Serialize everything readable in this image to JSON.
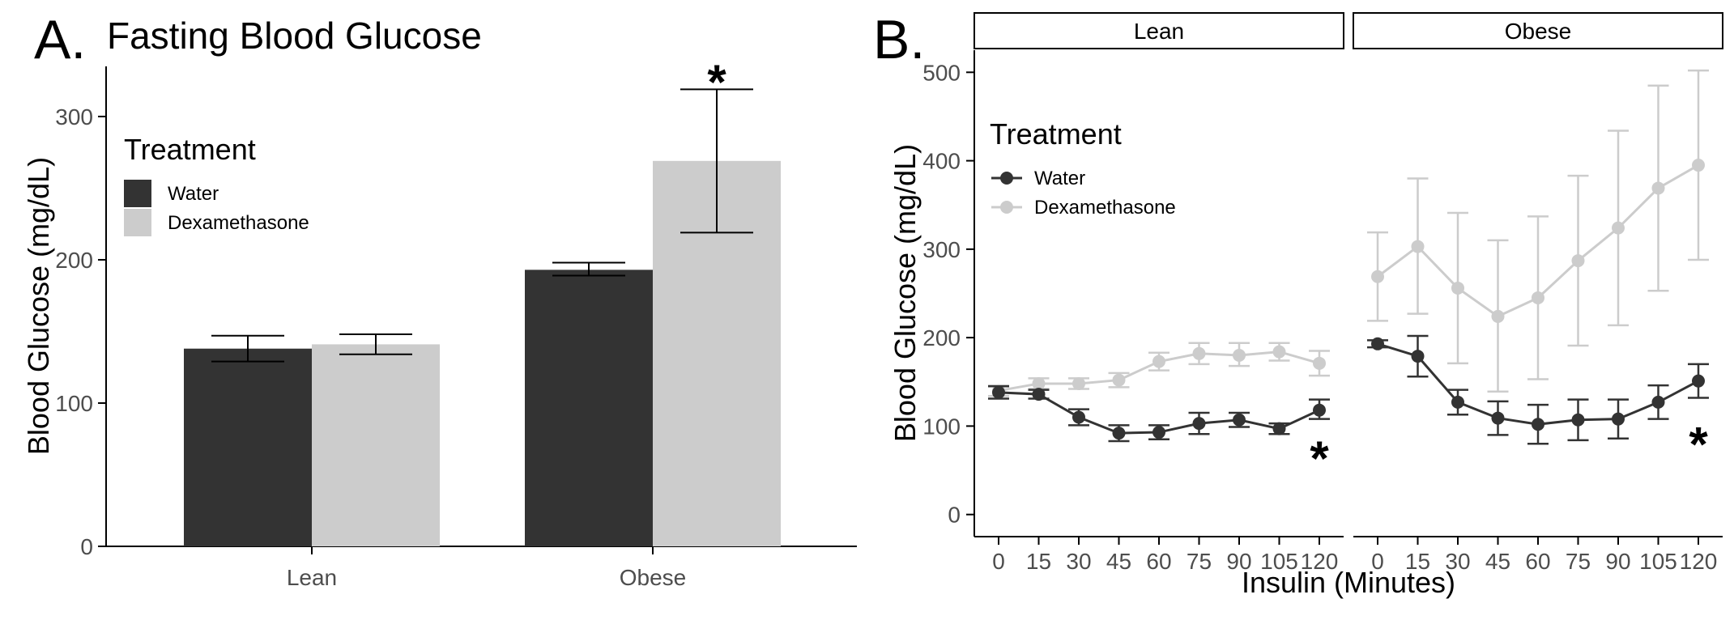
{
  "colors": {
    "water": "#333333",
    "dexamethasone": "#cccccc"
  },
  "chart_data": [
    {
      "panel": "A.",
      "type": "bar",
      "title": "Fasting Blood Glucose",
      "ylabel": "Blood Glucose (mg/dL)",
      "xlabel": "",
      "ylim": [
        0,
        335
      ],
      "yticks": [
        0,
        100,
        200,
        300
      ],
      "categories": [
        "Lean",
        "Obese"
      ],
      "legend": {
        "title": "Treatment",
        "placement": "top-left"
      },
      "series": [
        {
          "name": "Water",
          "values": [
            138,
            193
          ],
          "err_low": [
            129,
            189
          ],
          "err_high": [
            147,
            198
          ]
        },
        {
          "name": "Dexamethasone",
          "values": [
            141,
            269
          ],
          "err_low": [
            134,
            219
          ],
          "err_high": [
            148,
            319
          ]
        }
      ],
      "annotations": [
        {
          "text": "*",
          "category": "Obese",
          "series": "Dexamethasone",
          "y": 335
        }
      ]
    },
    {
      "panel": "B.",
      "type": "line",
      "ylabel": "Blood Glucose (mg/dL)",
      "xlabel": "Insulin (Minutes)",
      "ylim": [
        -25,
        525
      ],
      "yticks": [
        0,
        100,
        200,
        300,
        400,
        500
      ],
      "x": [
        0,
        15,
        30,
        45,
        60,
        75,
        90,
        105,
        120
      ],
      "xtick_labels": [
        "0",
        "15",
        "30",
        "45",
        "60",
        "75",
        "90",
        "105",
        "120"
      ],
      "legend": {
        "title": "Treatment",
        "placement": "top-left"
      },
      "facets": [
        {
          "label": "Lean",
          "series": [
            {
              "name": "Water",
              "values": [
                138,
                136,
                110,
                92,
                93,
                103,
                107,
                97,
                118
              ],
              "err_low": [
                131,
                131,
                101,
                83,
                85,
                91,
                99,
                91,
                108
              ],
              "err_high": [
                145,
                141,
                119,
                101,
                101,
                115,
                115,
                103,
                130
              ]
            },
            {
              "name": "Dexamethasone",
              "values": [
                140,
                148,
                148,
                152,
                173,
                182,
                180,
                184,
                171
              ],
              "err_low": [
                134,
                142,
                142,
                144,
                163,
                170,
                168,
                174,
                157
              ],
              "err_high": [
                146,
                154,
                154,
                160,
                183,
                194,
                194,
                194,
                185
              ]
            }
          ],
          "annotations": [
            {
              "text": "*",
              "x": 120,
              "y": 72
            }
          ]
        },
        {
          "label": "Obese",
          "series": [
            {
              "name": "Water",
              "values": [
                193,
                179,
                127,
                109,
                102,
                107,
                108,
                127,
                151
              ],
              "err_low": [
                189,
                156,
                113,
                90,
                80,
                84,
                86,
                108,
                132
              ],
              "err_high": [
                197,
                202,
                141,
                128,
                124,
                130,
                130,
                146,
                170
              ]
            },
            {
              "name": "Dexamethasone",
              "values": [
                269,
                303,
                256,
                224,
                245,
                287,
                324,
                369,
                395
              ],
              "err_low": [
                219,
                227,
                171,
                139,
                153,
                191,
                214,
                253,
                288
              ],
              "err_high": [
                319,
                380,
                341,
                310,
                337,
                383,
                434,
                485,
                502
              ]
            }
          ],
          "annotations": [
            {
              "text": "*",
              "x": 120,
              "y": 88
            }
          ]
        }
      ]
    }
  ]
}
